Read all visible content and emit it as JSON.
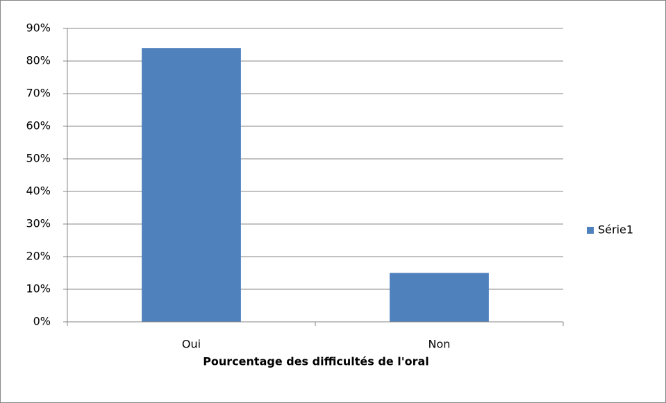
{
  "chart_data": {
    "type": "bar",
    "x_label": "Pourcentage des difficultés de l'oral",
    "categories": [
      "Oui",
      "Non"
    ],
    "series": [
      {
        "name": "Série1",
        "color": "#4f81bd",
        "values": [
          84,
          15
        ]
      }
    ],
    "ylim": [
      0,
      90
    ],
    "yticks": [
      {
        "value": 0,
        "label": "0%"
      },
      {
        "value": 10,
        "label": "10%"
      },
      {
        "value": 20,
        "label": "20%"
      },
      {
        "value": 30,
        "label": "30%"
      },
      {
        "value": 40,
        "label": "40%"
      },
      {
        "value": 50,
        "label": "50%"
      },
      {
        "value": 60,
        "label": "60%"
      },
      {
        "value": 70,
        "label": "70%"
      },
      {
        "value": 80,
        "label": "80%"
      },
      {
        "value": 90,
        "label": "90%"
      }
    ],
    "grid": true,
    "legend": "right"
  }
}
